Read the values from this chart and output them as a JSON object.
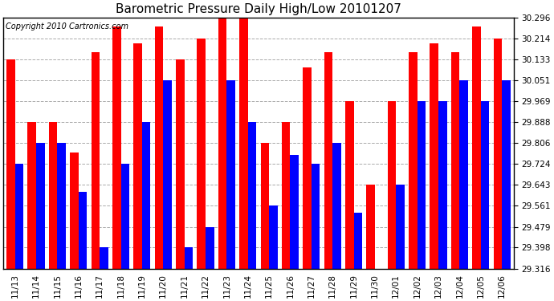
{
  "title": "Barometric Pressure Daily High/Low 20101207",
  "copyright": "Copyright 2010 Cartronics.com",
  "categories": [
    "11/13",
    "11/14",
    "11/15",
    "11/16",
    "11/17",
    "11/18",
    "11/19",
    "11/20",
    "11/21",
    "11/22",
    "11/23",
    "11/24",
    "11/25",
    "11/26",
    "11/27",
    "11/28",
    "11/29",
    "11/30",
    "12/01",
    "12/02",
    "12/03",
    "12/04",
    "12/05",
    "12/06"
  ],
  "highs": [
    30.133,
    29.888,
    29.888,
    29.769,
    30.16,
    30.26,
    30.196,
    30.26,
    30.133,
    30.214,
    30.296,
    30.296,
    29.806,
    29.888,
    30.1,
    30.16,
    29.969,
    29.643,
    29.969,
    30.16,
    30.196,
    30.16,
    30.26,
    30.214
  ],
  "lows": [
    29.724,
    29.806,
    29.806,
    29.616,
    29.398,
    29.724,
    29.888,
    30.051,
    29.398,
    29.479,
    30.051,
    29.888,
    29.561,
    29.761,
    29.724,
    29.806,
    29.534,
    29.316,
    29.643,
    29.969,
    29.969,
    30.051,
    29.969,
    30.051
  ],
  "bar_color_high": "#ff0000",
  "bar_color_low": "#0000ff",
  "background_color": "#ffffff",
  "grid_color": "#aaaaaa",
  "ymin": 29.316,
  "ymax": 30.296,
  "yticks": [
    29.316,
    29.398,
    29.479,
    29.561,
    29.643,
    29.724,
    29.806,
    29.888,
    29.969,
    30.051,
    30.133,
    30.214,
    30.296
  ],
  "title_fontsize": 11,
  "tick_fontsize": 7.5,
  "copyright_fontsize": 7
}
